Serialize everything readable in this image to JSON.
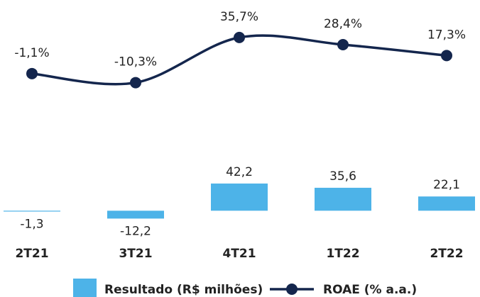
{
  "chart_data": {
    "type": "bar-line",
    "categories": [
      "2T21",
      "3T21",
      "4T21",
      "1T22",
      "2T22"
    ],
    "series": [
      {
        "name": "Resultado (R$ milhões)",
        "type": "bar",
        "color": "#4db3e8",
        "axis": "y",
        "values": [
          -1.3,
          -12.2,
          42.2,
          35.6,
          22.1
        ],
        "value_labels": [
          "-1,3",
          "-12,2",
          "42,2",
          "35,6",
          "22,1"
        ]
      },
      {
        "name": "ROAE (% a.a.)",
        "type": "line",
        "color": "#14264d",
        "axis": "y2",
        "values": [
          -1.1,
          -10.3,
          35.7,
          28.4,
          17.3
        ],
        "value_labels": [
          "-1,1%",
          "-10,3%",
          "35,7%",
          "28,4%",
          "17,3%"
        ]
      }
    ],
    "ylim": [
      -25,
      63
    ],
    "y2lim": [
      -20,
      45
    ],
    "legend": "bottom"
  }
}
